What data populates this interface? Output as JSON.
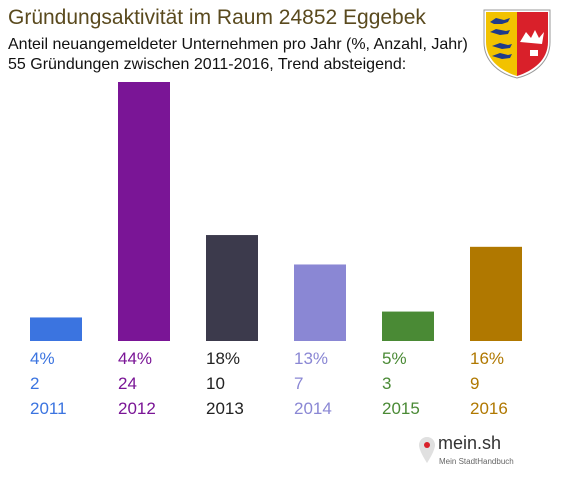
{
  "header": {
    "title": "Gründungsaktivität im Raum 24852 Eggebek",
    "subtitle_line1": "Anteil neuangemeldeter Unternehmen pro Jahr (%, Anzahl, Jahr)",
    "subtitle_line2": "55 Gründungen zwischen 2011-2016, Trend absteigend:"
  },
  "logo": {
    "icon": "coat-of-arms-schleswig-holstein-icon",
    "brand": "mein.sh",
    "tagline": "Mein StadtHandbuch"
  },
  "chart_data": {
    "type": "bar",
    "categories": [
      "2011",
      "2012",
      "2013",
      "2014",
      "2015",
      "2016"
    ],
    "values": [
      4,
      44,
      18,
      13,
      5,
      16
    ],
    "percent_labels": [
      "4%",
      "44%",
      "18%",
      "13%",
      "5%",
      "16%"
    ],
    "count_labels": [
      "2",
      "24",
      "10",
      "7",
      "3",
      "9"
    ],
    "colors": [
      "#3b74e0",
      "#7a1596",
      "#3c3a4c",
      "#8a87d4",
      "#4a8a35",
      "#b07800"
    ],
    "label_colors": [
      "#3b74e0",
      "#7a1596",
      "#222222",
      "#8a87d4",
      "#4a8a35",
      "#b07800"
    ],
    "ylim": [
      0,
      44
    ],
    "grid": false,
    "legend": "none"
  }
}
